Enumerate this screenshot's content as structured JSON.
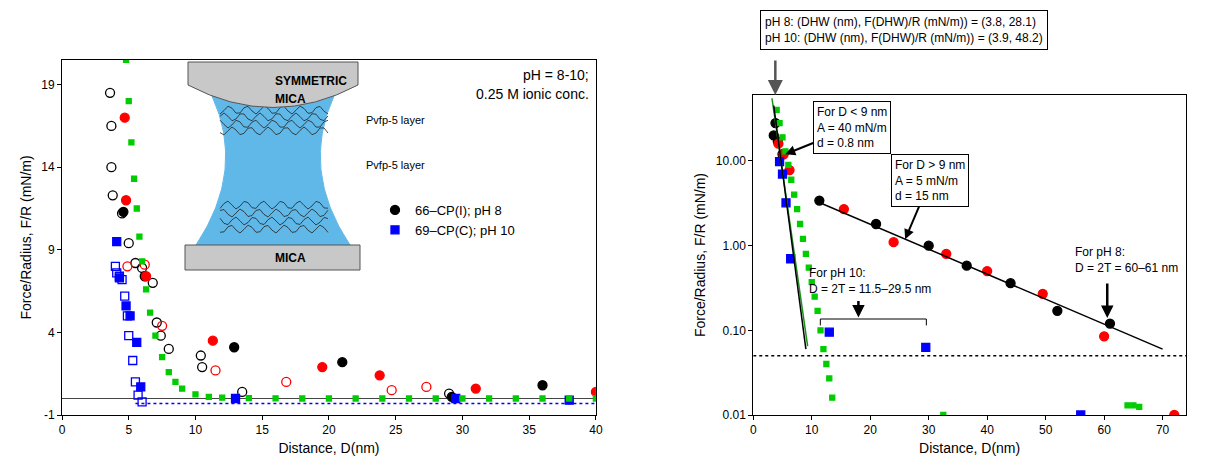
{
  "chart_data": [
    {
      "type": "scatter",
      "x_label": "Distance, D(nm)",
      "y_label": "Force/Radius, F/R (mN/m)",
      "xlim": [
        0,
        40
      ],
      "ylim": [
        -1,
        20.5
      ],
      "xticks": [
        0,
        5,
        10,
        15,
        20,
        25,
        30,
        35,
        40
      ],
      "yticks": [
        -1,
        4,
        9,
        14,
        19
      ],
      "grid": false,
      "legend": "right",
      "annotations": [
        "pH = 8-10;",
        "0.25 M ionic conc."
      ],
      "inset": {
        "title": "SYMMETRIC",
        "top": "MICA",
        "layers": [
          "Pvfp-5 layer",
          "Pvfp-5 layer"
        ],
        "bottom": "MICA"
      },
      "series": [
        {
          "color": "#000000",
          "marker": "circle-open",
          "x": [
            3.6,
            3.7,
            3.7,
            3.8,
            4.5,
            5.0,
            5.5,
            6.0,
            6.8,
            7.1,
            7.4,
            8.0,
            10.4,
            10.5,
            13.5,
            29.0
          ],
          "values": [
            18.5,
            16.5,
            14.0,
            12.3,
            11.2,
            9.4,
            8.2,
            7.9,
            7.0,
            4.6,
            3.8,
            3.0,
            2.6,
            1.9,
            0.4,
            0.3
          ]
        },
        {
          "name": "66–CP(I); pH 8",
          "color": "#000000",
          "marker": "circle",
          "x": [
            4.6,
            6.2,
            12.9,
            21.0,
            29.2,
            36.0
          ],
          "values": [
            11.3,
            7.4,
            3.1,
            2.2,
            0.1,
            0.8
          ]
        },
        {
          "color": "#ff0000",
          "marker": "circle-open",
          "x": [
            4.9,
            6.2,
            7.5,
            11.5,
            16.8,
            24.7,
            27.3
          ],
          "values": [
            8.0,
            8.1,
            4.4,
            1.7,
            1.0,
            0.5,
            0.7
          ]
        },
        {
          "color": "#ff0000",
          "marker": "circle",
          "x": [
            4.7,
            4.8,
            6.3,
            11.3,
            19.5,
            23.8,
            31.0,
            40.0
          ],
          "values": [
            17.0,
            12.0,
            7.4,
            3.5,
            1.9,
            1.4,
            0.6,
            0.4
          ]
        },
        {
          "color": "#0000ff",
          "marker": "square-open",
          "x": [
            4.0,
            4.1,
            4.3,
            4.5,
            4.7,
            4.9,
            5.0,
            5.3,
            5.5,
            5.7,
            6.0
          ],
          "values": [
            8.0,
            7.6,
            7.4,
            7.2,
            6.2,
            5.0,
            3.8,
            2.3,
            1.0,
            0.2,
            -0.2
          ]
        },
        {
          "name": "69–CP(C); pH 10",
          "color": "#0000ff",
          "marker": "square",
          "x": [
            4.1,
            4.3,
            4.8,
            5.1,
            5.6,
            5.9,
            13.0,
            29.5,
            38.0
          ],
          "values": [
            9.5,
            7.3,
            5.6,
            5.0,
            3.4,
            0.7,
            0.0,
            0.0,
            -0.1
          ]
        },
        {
          "type": "line",
          "color": "#0000ff",
          "line_style": "dotted",
          "x": [
            5.5,
            40.0
          ],
          "values": [
            -0.3,
            -0.3
          ]
        },
        {
          "color": "#00cc00",
          "marker": "small-square",
          "x": [
            4.8,
            5.0,
            5.2,
            5.4,
            5.6,
            5.8,
            6.0,
            6.3,
            6.6,
            7.0,
            7.5,
            8.0,
            8.5,
            9.0,
            10.0,
            11.0,
            12.0,
            14.0,
            16.0,
            18.0,
            20.0,
            22.0,
            24.0,
            26.0,
            28.0,
            30.0,
            32.0,
            34.0,
            36.0,
            38.0,
            40.0
          ],
          "values": [
            20.5,
            18.0,
            15.5,
            13.3,
            11.5,
            9.8,
            8.3,
            6.6,
            5.2,
            3.8,
            2.5,
            1.6,
            1.0,
            0.6,
            0.25,
            0.1,
            0.05,
            0.02,
            0.01,
            0,
            0,
            0,
            0,
            0,
            0,
            0,
            0,
            0,
            0,
            0,
            0
          ]
        }
      ]
    },
    {
      "type": "scatter",
      "x_label": "Distance, D(nm)",
      "y_label": "Force/Radius, F/R (mN/m)",
      "log": "y",
      "xlim": [
        0,
        74
      ],
      "ylim": [
        0.01,
        60
      ],
      "xticks": [
        0,
        10,
        20,
        30,
        40,
        50,
        60,
        70
      ],
      "yticks": [
        0.01,
        {
          "value": 0.1,
          "label": "0.10"
        },
        {
          "value": 1,
          "label": "1.00"
        },
        {
          "value": 10,
          "label": "10.00"
        }
      ],
      "grid": false,
      "header": [
        "pH 8: (DHW (nm), F(DHW)/R (mN/m)) = (3.8, 28.1)",
        "pH 10: (DHW (nm), F(DHW)/R (mN/m)) = (3.9, 48.2)"
      ],
      "annotations": [
        [
          "For D < 9 nm",
          "A = 40 mN/m",
          "d = 0.8 nm"
        ],
        [
          "For D > 9 nm",
          "A = 5 mN/m",
          "d = 15 nm"
        ],
        [
          "For pH 10:",
          "D = 2T = 11.5–29.5 nm"
        ],
        [
          "For pH 8:",
          "D = 2T = 60–61 nm"
        ]
      ],
      "series": [
        {
          "color": "#000000",
          "marker": "circle",
          "x": [
            3.5,
            3.8,
            4.2,
            5.0,
            11.3,
            21.0,
            30.0,
            36.5,
            44.0,
            52.0,
            61.0
          ],
          "values": [
            20,
            28,
            17,
            12,
            3.4,
            1.8,
            1.0,
            0.58,
            0.36,
            0.17,
            0.12
          ]
        },
        {
          "color": "#ff0000",
          "marker": "circle",
          "x": [
            4.3,
            5.2,
            6.2,
            15.5,
            24.0,
            33.0,
            40.0,
            49.5,
            60.0,
            72.0
          ],
          "values": [
            16,
            12,
            7.8,
            2.7,
            1.1,
            0.8,
            0.5,
            0.27,
            0.085,
            0.01
          ]
        },
        {
          "color": "#0000ff",
          "marker": "square",
          "x": [
            4.5,
            5.0,
            5.6,
            6.4,
            13.0,
            29.5,
            56.0
          ],
          "values": [
            9.8,
            7.0,
            3.2,
            0.7,
            0.095,
            0.063,
            0.01
          ]
        },
        {
          "color": "#00cc00",
          "marker": "small-square",
          "x": [
            4.0,
            4.5,
            5.0,
            5.5,
            6.0,
            6.5,
            7.0,
            7.5,
            8.0,
            8.5,
            9.0,
            9.5,
            10.0,
            10.5,
            11.0,
            11.5,
            12.0,
            12.5,
            13.0,
            13.5,
            32.5,
            64.0,
            65.0,
            66.0
          ],
          "values": [
            40,
            28,
            19,
            13,
            9,
            6,
            4,
            2.7,
            1.8,
            1.2,
            0.8,
            0.55,
            0.37,
            0.25,
            0.17,
            0.1,
            0.06,
            0.04,
            0.027,
            0.016,
            0.01,
            0.013,
            0.013,
            0.0125
          ]
        },
        {
          "type": "line",
          "color": "#1e8f1e",
          "line_style": "solid",
          "x": [
            3.2,
            9.3
          ],
          "values": [
            55,
            0.065
          ]
        },
        {
          "type": "line",
          "color": "#000000",
          "line_style": "solid",
          "x": [
            3.5,
            9.0
          ],
          "values": [
            45,
            0.06
          ]
        },
        {
          "type": "line",
          "color": "#000000",
          "line_style": "solid",
          "x": [
            11.0,
            70.0
          ],
          "values": [
            3.3,
            0.06
          ]
        },
        {
          "type": "line",
          "color": "#000000",
          "line_style": "dotted",
          "x": [
            0,
            74
          ],
          "values": [
            0.05,
            0.05
          ]
        }
      ]
    }
  ]
}
